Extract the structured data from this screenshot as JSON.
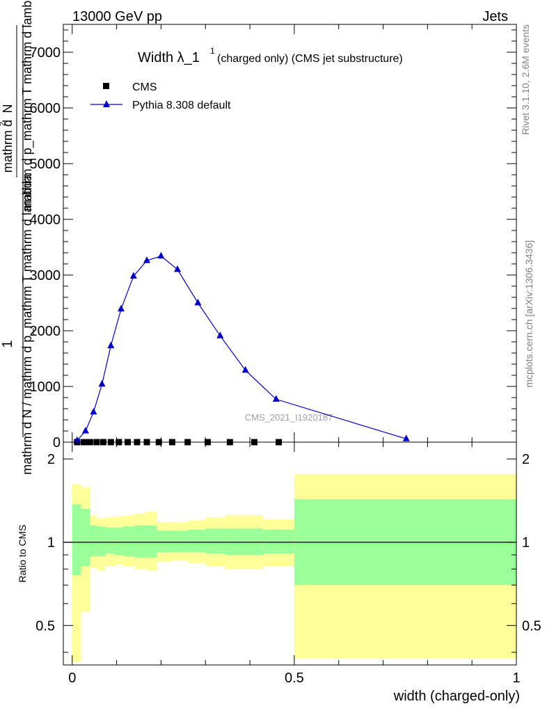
{
  "header": {
    "left": "13000 GeV pp",
    "right": "Jets"
  },
  "side_labels": {
    "rivet": "Rivet 3.1.10,  2.6M events",
    "mcplots": "mcplots.cern.ch [arXiv:1306.3436]"
  },
  "main_title": {
    "text": "Width λ_1",
    "sup": "1",
    "suffix": "(charged only) (CMS jet substructure)"
  },
  "ylabel": {
    "numerator": "1",
    "denominator": "mathrm d N / mathrm d p_mathrm T mathrm d lambda",
    "top_num": "mathrm d",
    "top_sup": "2",
    "top_den": "N",
    "top_tail": "mathrm d p_mathrm T mathrm d lambda"
  },
  "watermark": "CMS_2021_I1920187",
  "xlabel": "width (charged-only)",
  "ratio_ylabel": "Ratio to CMS",
  "colors": {
    "mc": "#0000cc",
    "data": "#000000",
    "band_outer": "#ffff99",
    "band_inner": "#99ff99"
  },
  "chart_data": [
    {
      "type": "line",
      "title": "Width λ_1^1 (charged only) (CMS jet substructure)",
      "xlabel": "width (charged-only)",
      "ylabel": "1/N dN/dp_T dλ",
      "xlim": [
        -0.02,
        1.0
      ],
      "ylim": [
        0,
        7500
      ],
      "yticks": [
        0,
        1000,
        2000,
        3000,
        4000,
        5000,
        6000,
        7000
      ],
      "ytick_labels": [
        "0",
        "1000",
        "2000",
        "3000",
        "4000",
        "5000",
        "6000",
        "7000"
      ],
      "legend_position": "top-left",
      "series": [
        {
          "name": "CMS",
          "marker": "square",
          "x": [
            0.011,
            0.026,
            0.04,
            0.055,
            0.07,
            0.087,
            0.105,
            0.125,
            0.146,
            0.168,
            0.195,
            0.225,
            0.26,
            0.305,
            0.355,
            0.41,
            0.465
          ],
          "y": [
            0,
            0,
            0,
            0,
            0,
            0,
            0,
            0,
            0,
            0,
            0,
            0,
            0,
            0,
            0,
            0,
            0
          ]
        },
        {
          "name": "Pythia 8.308 default",
          "marker": "triangle",
          "x": [
            0.011,
            0.03,
            0.048,
            0.067,
            0.087,
            0.11,
            0.138,
            0.168,
            0.2,
            0.237,
            0.283,
            0.333,
            0.39,
            0.459,
            0.752
          ],
          "y": [
            30,
            200,
            540,
            1040,
            1730,
            2390,
            2980,
            3260,
            3340,
            3100,
            2500,
            1910,
            1290,
            770,
            60
          ],
          "yerr": [
            5,
            15,
            25,
            35,
            40,
            45,
            45,
            45,
            45,
            40,
            35,
            30,
            25,
            15,
            5
          ]
        }
      ]
    },
    {
      "type": "area",
      "title": "",
      "xlabel": "width (charged-only)",
      "ylabel": "Ratio to CMS",
      "xlim": [
        -0.02,
        1.0
      ],
      "ylim": [
        0.36,
        2.3
      ],
      "yticks": [
        0.5,
        1,
        2
      ],
      "ytick_labels": [
        "0.5",
        "1",
        "2"
      ],
      "xticks": [
        0,
        0.5,
        1
      ],
      "xtick_labels": [
        "0",
        "0.5",
        "1"
      ],
      "bin_edges": [
        0,
        0.02,
        0.04,
        0.055,
        0.075,
        0.095,
        0.115,
        0.14,
        0.165,
        0.19,
        0.225,
        0.26,
        0.3,
        0.345,
        0.395,
        0.43,
        0.5,
        1.0
      ],
      "outer_band": {
        "low": [
          0.37,
          0.56,
          0.81,
          0.79,
          0.82,
          0.83,
          0.82,
          0.8,
          0.79,
          0.85,
          0.86,
          0.84,
          0.82,
          0.8,
          0.8,
          0.82,
          0.38
        ],
        "high": [
          1.62,
          1.58,
          1.25,
          1.22,
          1.23,
          1.24,
          1.25,
          1.27,
          1.29,
          1.18,
          1.18,
          1.2,
          1.23,
          1.25,
          1.25,
          1.21,
          1.76
        ]
      },
      "inner_band": {
        "low": [
          0.76,
          0.82,
          0.89,
          0.89,
          0.91,
          0.9,
          0.89,
          0.88,
          0.88,
          0.92,
          0.92,
          0.92,
          0.91,
          0.9,
          0.9,
          0.91,
          0.7
        ],
        "high": [
          1.37,
          1.32,
          1.15,
          1.14,
          1.13,
          1.13,
          1.14,
          1.15,
          1.15,
          1.1,
          1.1,
          1.11,
          1.12,
          1.12,
          1.12,
          1.11,
          1.43
        ]
      },
      "reference_line": 1
    }
  ]
}
